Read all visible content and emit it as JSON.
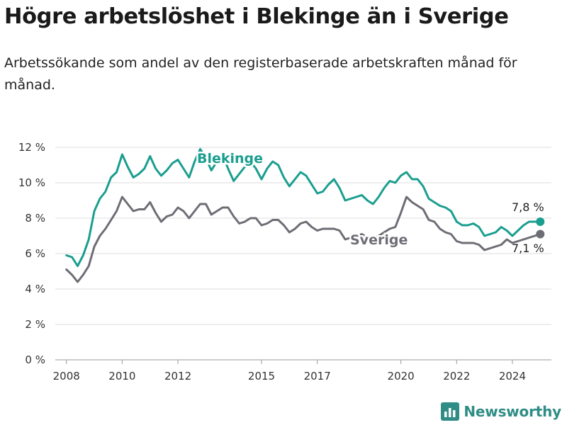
{
  "header": {
    "title": "Högre arbetslöshet i Blekinge än i Sverige",
    "subtitle": "Arbetssökande som andel av den registerbaserade arbetskraften månad för månad."
  },
  "brand": {
    "name": "Newsworthy",
    "icon": "bar-chart-logo-icon",
    "color": "#2f8d86"
  },
  "chart_data": {
    "type": "line",
    "title": "",
    "xlabel": "",
    "ylabel": "",
    "xlim": [
      2007.6,
      2025.4
    ],
    "ylim": [
      0,
      12
    ],
    "y_unit": "%",
    "y_ticks": [
      0,
      2,
      4,
      6,
      8,
      10,
      12
    ],
    "y_tick_labels": [
      "0 %",
      "2 %",
      "4 %",
      "6 %",
      "8 %",
      "10 %",
      "12 %"
    ],
    "x_ticks": [
      2008,
      2010,
      2012,
      2015,
      2017,
      2020,
      2022,
      2024
    ],
    "x_tick_labels": [
      "2008",
      "2010",
      "2012",
      "2015",
      "2017",
      "2020",
      "2022",
      "2024"
    ],
    "grid": "horizontal",
    "legend": "direct labels on lines",
    "series": [
      {
        "name": "Blekinge",
        "color": "#1a9e8f",
        "end_label": "7,8 %",
        "x": [
          2008.0,
          2008.2,
          2008.4,
          2008.6,
          2008.8,
          2009.0,
          2009.2,
          2009.4,
          2009.6,
          2009.8,
          2010.0,
          2010.2,
          2010.4,
          2010.6,
          2010.8,
          2011.0,
          2011.2,
          2011.4,
          2011.6,
          2011.8,
          2012.0,
          2012.2,
          2012.4,
          2012.6,
          2012.8,
          2013.0,
          2013.2,
          2013.4,
          2013.6,
          2013.8,
          2014.0,
          2014.2,
          2014.4,
          2014.6,
          2014.8,
          2015.0,
          2015.2,
          2015.4,
          2015.6,
          2015.8,
          2016.0,
          2016.2,
          2016.4,
          2016.6,
          2016.8,
          2017.0,
          2017.2,
          2017.4,
          2017.6,
          2017.8,
          2018.0,
          2018.2,
          2018.4,
          2018.6,
          2018.8,
          2019.0,
          2019.2,
          2019.4,
          2019.6,
          2019.8,
          2020.0,
          2020.2,
          2020.4,
          2020.6,
          2020.8,
          2021.0,
          2021.2,
          2021.4,
          2021.6,
          2021.8,
          2022.0,
          2022.2,
          2022.4,
          2022.6,
          2022.8,
          2023.0,
          2023.2,
          2023.4,
          2023.6,
          2023.8,
          2024.0,
          2024.2,
          2024.4,
          2024.6,
          2024.8,
          2025.0
        ],
        "y": [
          5.9,
          5.8,
          5.3,
          5.9,
          6.8,
          8.4,
          9.1,
          9.5,
          10.3,
          10.6,
          11.6,
          10.9,
          10.3,
          10.5,
          10.8,
          11.5,
          10.8,
          10.4,
          10.7,
          11.1,
          11.3,
          10.8,
          10.3,
          11.2,
          11.9,
          11.4,
          10.7,
          11.2,
          11.6,
          10.8,
          10.1,
          10.5,
          10.9,
          11.2,
          10.8,
          10.2,
          10.8,
          11.2,
          11.0,
          10.3,
          9.8,
          10.2,
          10.6,
          10.4,
          9.9,
          9.4,
          9.5,
          9.9,
          10.2,
          9.7,
          9.0,
          9.1,
          9.2,
          9.3,
          9.0,
          8.8,
          9.2,
          9.7,
          10.1,
          10.0,
          10.4,
          10.6,
          10.2,
          10.2,
          9.8,
          9.1,
          8.9,
          8.7,
          8.6,
          8.4,
          7.8,
          7.6,
          7.6,
          7.7,
          7.5,
          7.0,
          7.1,
          7.2,
          7.5,
          7.3,
          7.0,
          7.3,
          7.6,
          7.8,
          7.8,
          7.8
        ]
      },
      {
        "name": "Sverige",
        "color": "#6d6d75",
        "end_label": "7,1 %",
        "x": [
          2008.0,
          2008.2,
          2008.4,
          2008.6,
          2008.8,
          2009.0,
          2009.2,
          2009.4,
          2009.6,
          2009.8,
          2010.0,
          2010.2,
          2010.4,
          2010.6,
          2010.8,
          2011.0,
          2011.2,
          2011.4,
          2011.6,
          2011.8,
          2012.0,
          2012.2,
          2012.4,
          2012.6,
          2012.8,
          2013.0,
          2013.2,
          2013.4,
          2013.6,
          2013.8,
          2014.0,
          2014.2,
          2014.4,
          2014.6,
          2014.8,
          2015.0,
          2015.2,
          2015.4,
          2015.6,
          2015.8,
          2016.0,
          2016.2,
          2016.4,
          2016.6,
          2016.8,
          2017.0,
          2017.2,
          2017.4,
          2017.6,
          2017.8,
          2018.0,
          2018.2,
          2018.4,
          2018.6,
          2018.8,
          2019.0,
          2019.2,
          2019.4,
          2019.6,
          2019.8,
          2020.0,
          2020.2,
          2020.4,
          2020.6,
          2020.8,
          2021.0,
          2021.2,
          2021.4,
          2021.6,
          2021.8,
          2022.0,
          2022.2,
          2022.4,
          2022.6,
          2022.8,
          2023.0,
          2023.2,
          2023.4,
          2023.6,
          2023.8,
          2024.0,
          2024.2,
          2024.4,
          2024.6,
          2024.8,
          2025.0
        ],
        "y": [
          5.1,
          4.8,
          4.4,
          4.8,
          5.3,
          6.4,
          7.0,
          7.4,
          7.9,
          8.4,
          9.2,
          8.8,
          8.4,
          8.5,
          8.5,
          8.9,
          8.3,
          7.8,
          8.1,
          8.2,
          8.6,
          8.4,
          8.0,
          8.4,
          8.8,
          8.8,
          8.2,
          8.4,
          8.6,
          8.6,
          8.1,
          7.7,
          7.8,
          8.0,
          8.0,
          7.6,
          7.7,
          7.9,
          7.9,
          7.6,
          7.2,
          7.4,
          7.7,
          7.8,
          7.5,
          7.3,
          7.4,
          7.4,
          7.4,
          7.3,
          6.8,
          6.9,
          7.0,
          7.1,
          6.9,
          6.8,
          7.0,
          7.2,
          7.4,
          7.5,
          8.3,
          9.2,
          8.9,
          8.7,
          8.5,
          7.9,
          7.8,
          7.4,
          7.2,
          7.1,
          6.7,
          6.6,
          6.6,
          6.6,
          6.5,
          6.2,
          6.3,
          6.4,
          6.5,
          6.8,
          6.6,
          6.7,
          6.8,
          6.9,
          7.0,
          7.1
        ]
      }
    ]
  }
}
